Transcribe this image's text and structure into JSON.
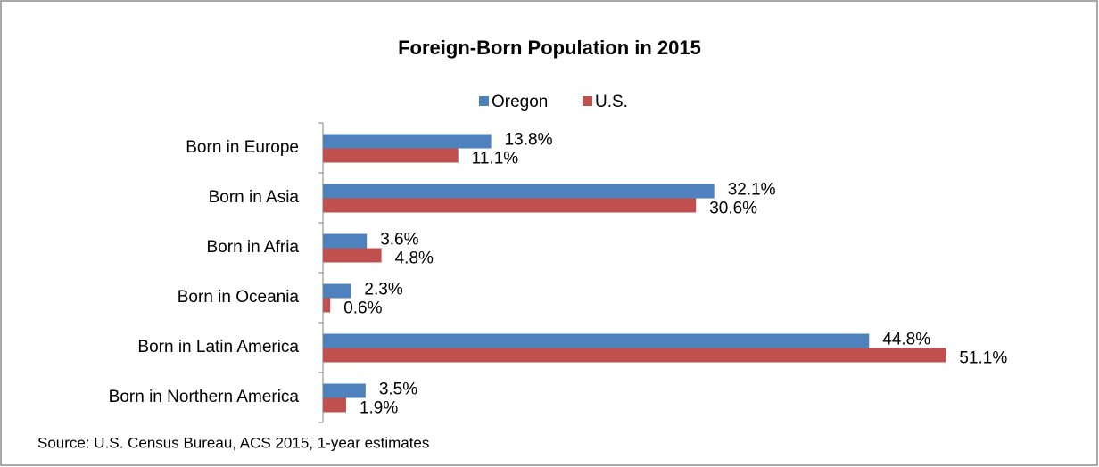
{
  "chart_data": {
    "type": "bar",
    "orientation": "horizontal",
    "title": "Foreign-Born Population in 2015",
    "source": "Source: U.S. Census Bureau, ACS 2015, 1-year estimates",
    "categories": [
      "Born in Europe",
      "Born in Asia",
      "Born in Afria",
      "Born in Oceania",
      "Born in Latin America",
      "Born in Northern America"
    ],
    "series": [
      {
        "name": "Oregon",
        "color": "#4f81bd",
        "values": [
          13.8,
          32.1,
          3.6,
          2.3,
          44.8,
          3.5
        ],
        "value_labels": [
          "13.8%",
          "32.1%",
          "3.6%",
          "2.3%",
          "44.8%",
          "3.5%"
        ]
      },
      {
        "name": "U.S.",
        "color": "#c0504d",
        "values": [
          11.1,
          30.6,
          4.8,
          0.6,
          51.1,
          1.9
        ],
        "value_labels": [
          "11.1%",
          "30.6%",
          "4.8%",
          "0.6%",
          "51.1%",
          "1.9%"
        ]
      }
    ],
    "xlim": [
      0,
      60
    ],
    "legend": "top"
  }
}
